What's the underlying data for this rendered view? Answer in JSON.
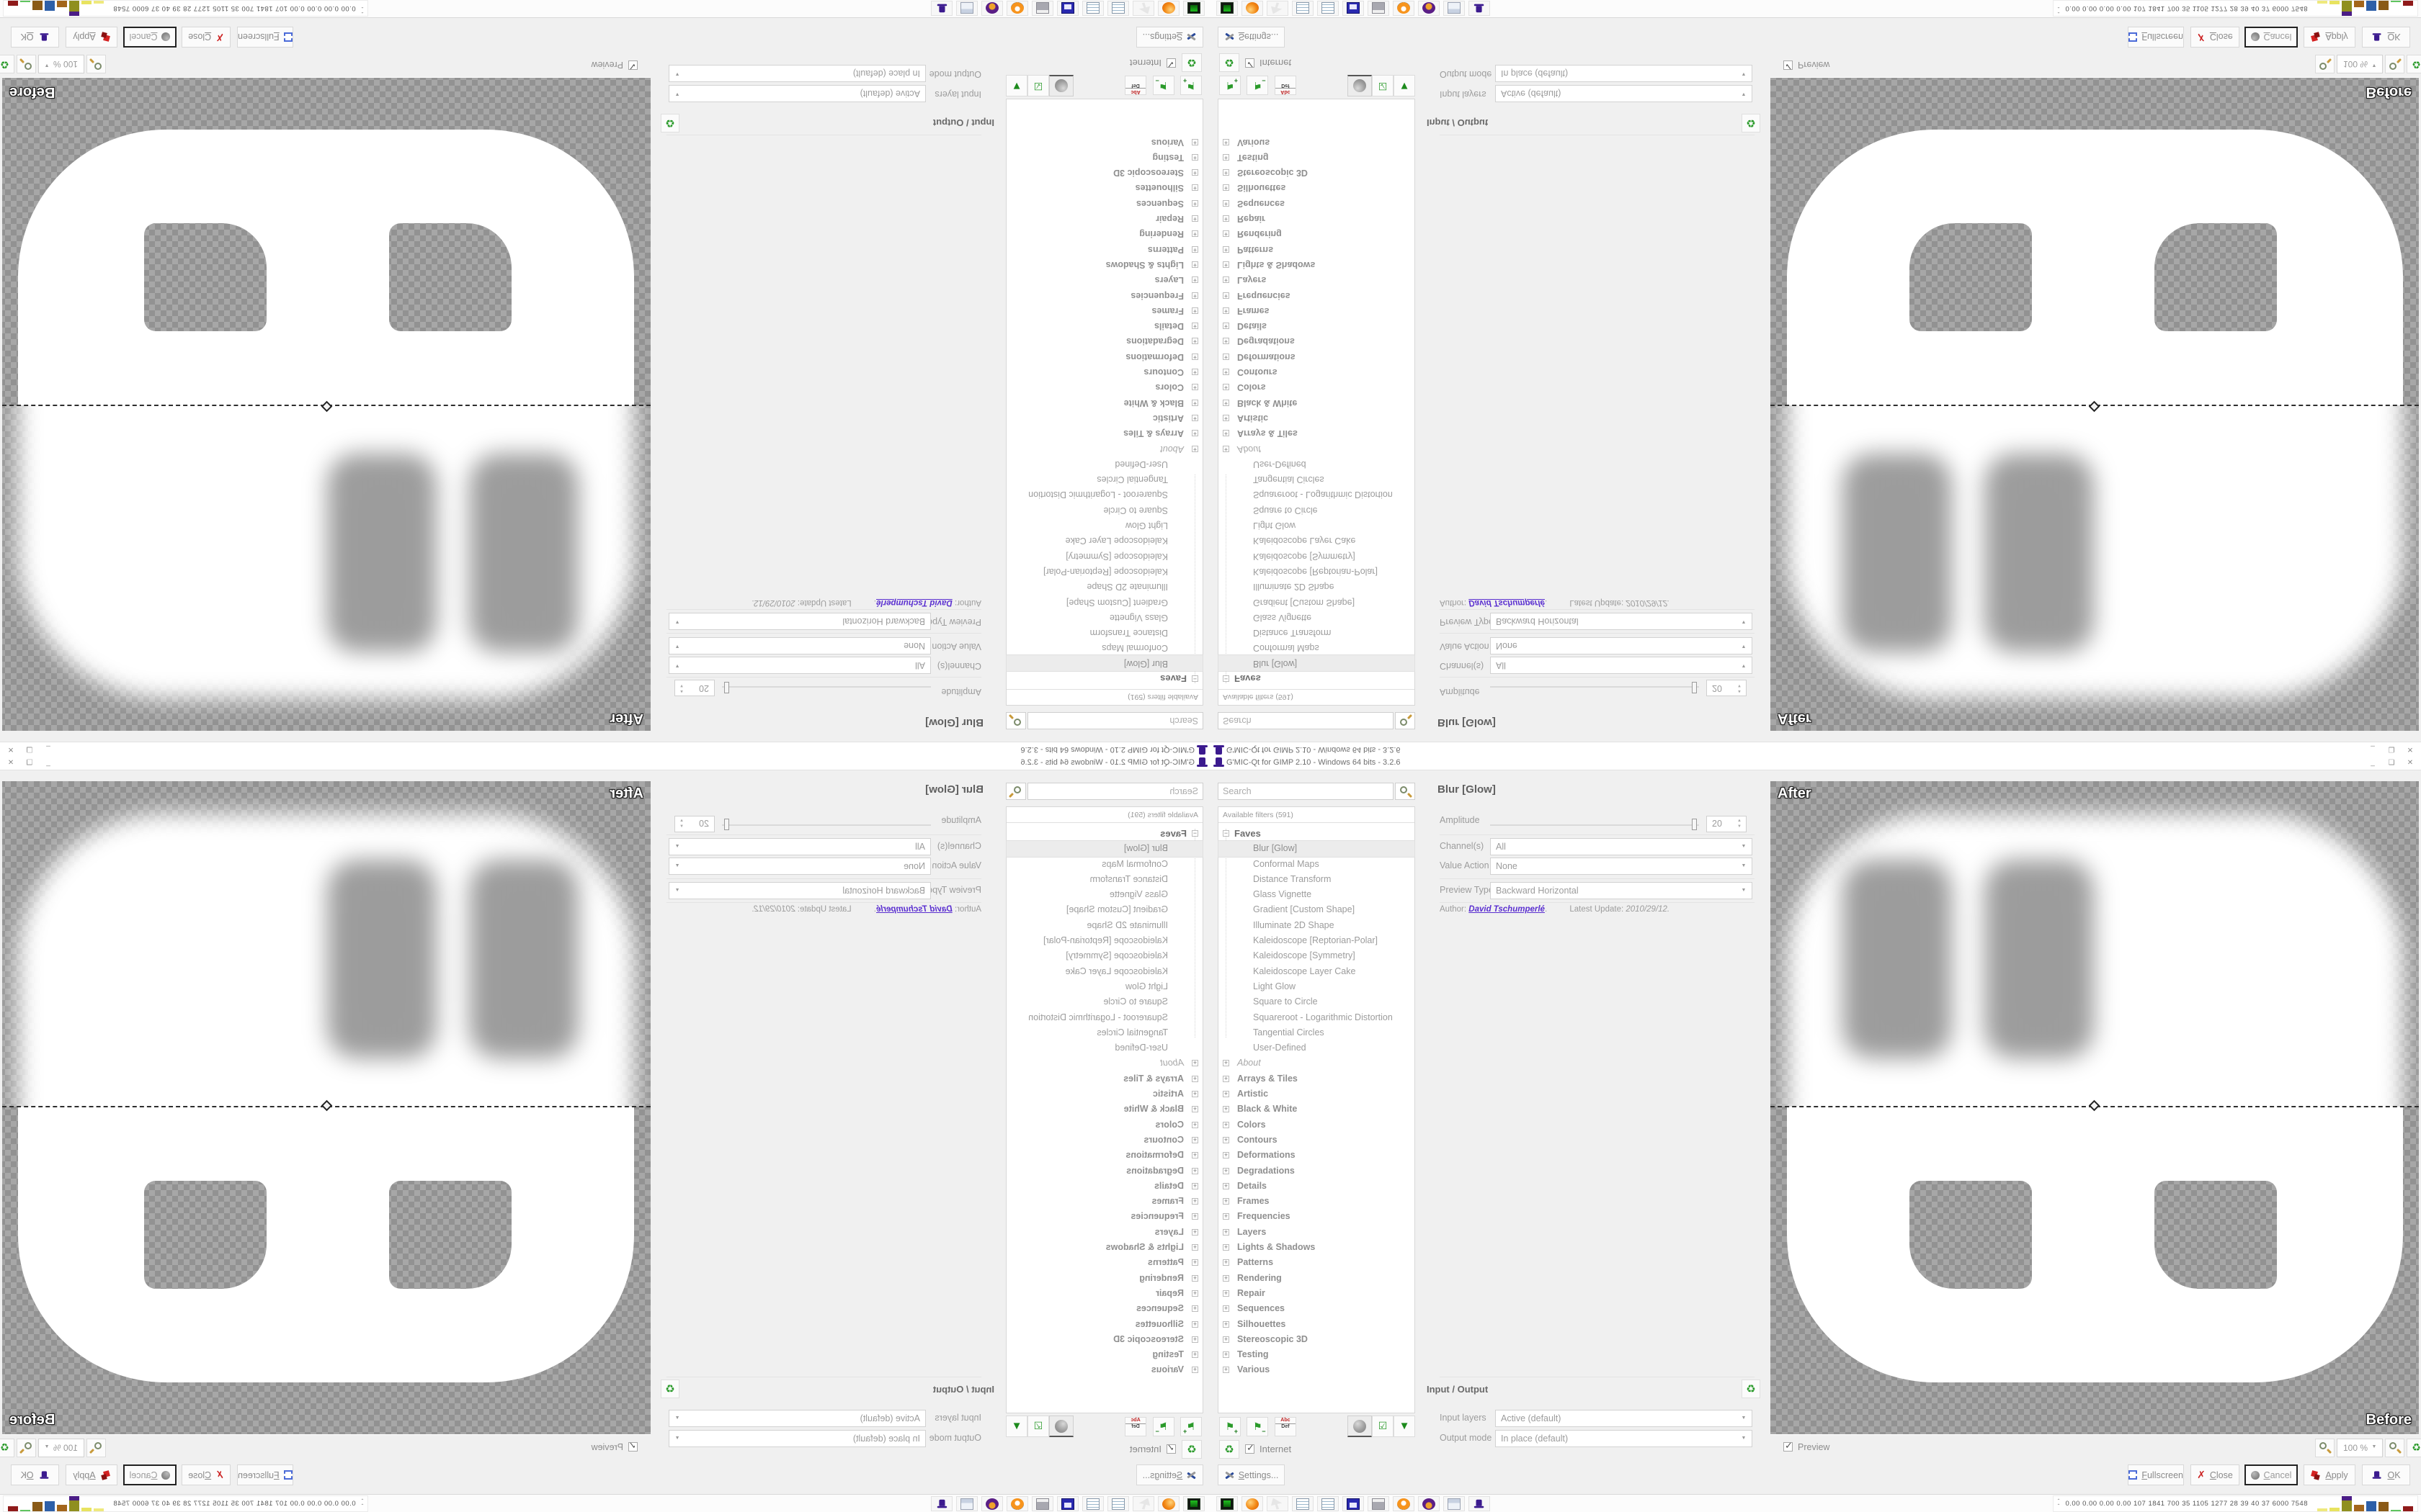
{
  "window": {
    "title": "G'MIC-Qt for GIMP 2.10 - Windows 64 bits - 3.2.6",
    "minimize_glyph": "_",
    "restore_glyph": "❏",
    "close_glyph": "✕"
  },
  "filters": {
    "search_placeholder": "Search",
    "search_icon": "magnifier-icon",
    "available_header": "Available filters (591)",
    "faves_label": "Faves",
    "selected_filter": "Blur [Glow]",
    "faves": [
      "Blur [Glow]",
      "Conformal Maps",
      "Distance Transform",
      "Glass Vignette",
      "Gradient [Custom Shape]",
      "Illuminate 2D Shape",
      "Kaleidoscope [Reptorian-Polar]",
      "Kaleidoscope [Symmetry]",
      "Kaleidoscope Layer Cake",
      "Light Glow",
      "Square to Circle",
      "Squareroot - Logarithmic Distortion",
      "Tangential Circles",
      "User-Defined"
    ],
    "categories": [
      "About",
      "Arrays & Tiles",
      "Artistic",
      "Black & White",
      "Colors",
      "Contours",
      "Deformations",
      "Degradations",
      "Details",
      "Frames",
      "Frequencies",
      "Layers",
      "Lights & Shadows",
      "Patterns",
      "Rendering",
      "Repair",
      "Sequences",
      "Silhouettes",
      "Stereoscopic 3D",
      "Testing",
      "Various"
    ],
    "rename_icon_top": "Abc",
    "rename_icon_bottom": "Def",
    "internet_label": "Internet"
  },
  "params": {
    "title": "Blur [Glow]",
    "amplitude_label": "Amplitude",
    "amplitude_value": "20",
    "channels_label": "Channel(s)",
    "channels_value": "All",
    "value_action_label": "Value Action",
    "value_action_value": "None",
    "preview_type_label": "Preview Type",
    "preview_type_value": "Backward Horizontal",
    "author_prefix": "Author:",
    "author_name": "David Tschumperlé",
    "author_suffix": ".",
    "update_label": "Latest Update:",
    "update_value": "2010/29/12."
  },
  "io": {
    "header": "Input / Output",
    "input_layers_label": "Input layers",
    "input_layers_value": "Active (default)",
    "output_mode_label": "Output mode",
    "output_mode_value": "In place (default)"
  },
  "preview": {
    "after_label": "After",
    "before_label": "Before",
    "preview_checkbox_label": "Preview",
    "zoom_value": "100 %"
  },
  "buttons": {
    "settings": "Settings...",
    "fullscreen": "Fullscreen",
    "close": "Close",
    "cancel": "Cancel",
    "apply": "Apply",
    "ok": "OK"
  },
  "taskbar": {
    "icons": [
      "system-monitor",
      "firefox",
      "pointer-inactive",
      "notepad",
      "notepad",
      "installer-64",
      "printer",
      "blender",
      "owl-app",
      "calculator",
      "gmic"
    ],
    "installer_label": "64",
    "tray_text": "0.00 0.00 0.00 0.00  107 1841 700  35  1105 1277  28  39  40  37  6000 7548",
    "tray_bars": [
      {
        "c": "#efe97d",
        "h": 4
      },
      {
        "c": "#e8e35f",
        "h": 5
      },
      {
        "c": "#8f8f1f",
        "h": 15,
        "cap": "#4b1d86",
        "caph": 6
      },
      {
        "c": "#a3651b",
        "h": 9
      },
      {
        "c": "#2d5fa8",
        "h": 14
      },
      {
        "c": "#8a5a17",
        "h": 13
      },
      {
        "c": "#5fc45f",
        "h": 2
      },
      {
        "c": "#8f1a1a",
        "h": 7
      }
    ],
    "accent_colors": {
      "green": "#2a9a2a",
      "red": "#cc2222",
      "purple": "#3b1a8e",
      "link": "#5a2fd0"
    }
  }
}
